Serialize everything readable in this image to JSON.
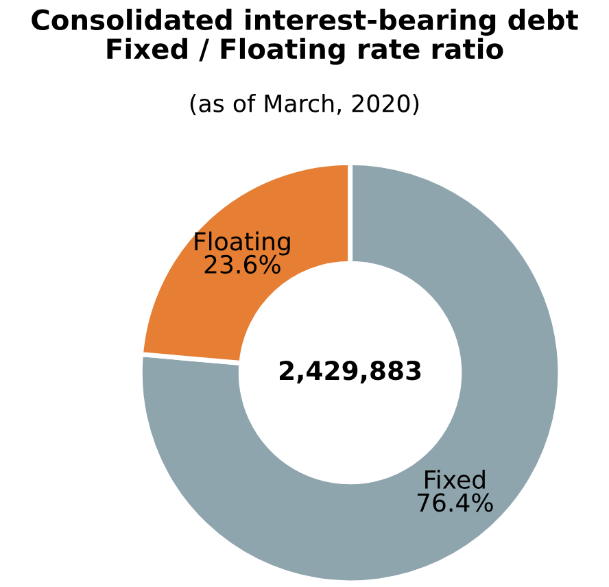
{
  "chart_data": {
    "type": "donut",
    "title": "Consolidated interest-bearing debt\nFixed / Floating rate ratio",
    "subtitle": "(as of March, 2020)",
    "categories": [
      "Fixed",
      "Floating"
    ],
    "values": [
      76.4,
      23.6
    ],
    "colors": [
      "#8fa5ae",
      "#e67e33"
    ],
    "value_labels": [
      "76.4%",
      "23.6%"
    ],
    "annotations": [
      "2,429,883"
    ],
    "legend": false
  }
}
